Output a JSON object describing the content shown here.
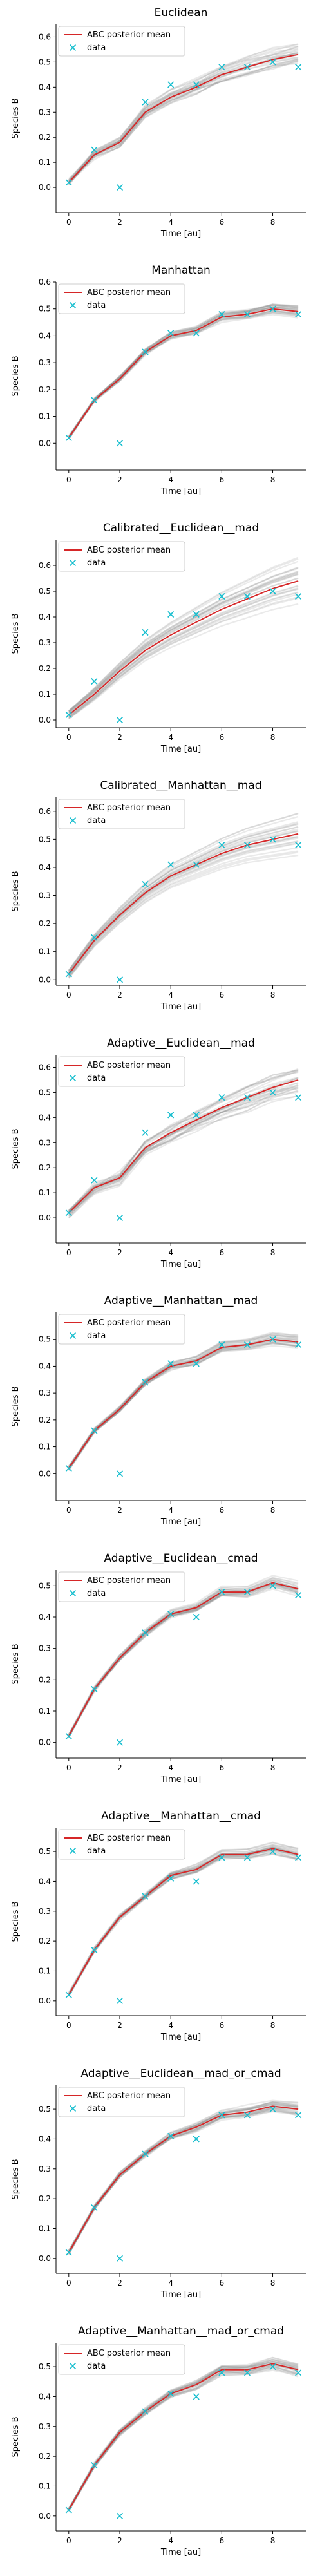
{
  "chart_data": [
    {
      "type": "line",
      "title": "Euclidean",
      "xlabel": "Time [au]",
      "ylabel": "Species B",
      "xlim": [
        -0.5,
        9.3
      ],
      "ylim": [
        -0.1,
        0.65
      ],
      "xticks": [
        "0",
        "2",
        "4",
        "6",
        "8"
      ],
      "yticks": [
        "0.0",
        "0.1",
        "0.2",
        "0.3",
        "0.4",
        "0.5",
        "0.6"
      ],
      "legend": {
        "placement": "top-left",
        "entries": [
          "ABC posterior mean",
          "data"
        ]
      },
      "series": [
        {
          "name": "ABC posterior mean",
          "x": [
            0,
            1,
            2,
            3,
            4,
            5,
            6,
            7,
            8,
            9
          ],
          "y": [
            0.02,
            0.13,
            0.18,
            0.3,
            0.36,
            0.4,
            0.45,
            0.48,
            0.51,
            0.53
          ]
        },
        {
          "name": "data",
          "x": [
            0,
            1,
            2,
            3,
            4,
            5,
            6,
            7,
            8,
            9
          ],
          "y": [
            0.02,
            0.15,
            0.0,
            0.34,
            0.41,
            0.41,
            0.48,
            0.48,
            0.5,
            0.48
          ]
        }
      ],
      "band": {
        "spread": 0.035,
        "trend": "wiggly"
      }
    },
    {
      "type": "line",
      "title": "Manhattan",
      "xlabel": "Time [au]",
      "ylabel": "Species B",
      "xlim": [
        -0.5,
        9.3
      ],
      "ylim": [
        -0.1,
        0.6
      ],
      "xticks": [
        "0",
        "2",
        "4",
        "6",
        "8"
      ],
      "yticks": [
        "0.0",
        "0.1",
        "0.2",
        "0.3",
        "0.4",
        "0.5",
        "0.6"
      ],
      "legend": {
        "placement": "top-left",
        "entries": [
          "ABC posterior mean",
          "data"
        ]
      },
      "series": [
        {
          "name": "ABC posterior mean",
          "x": [
            0,
            1,
            2,
            3,
            4,
            5,
            6,
            7,
            8,
            9
          ],
          "y": [
            0.02,
            0.16,
            0.24,
            0.34,
            0.4,
            0.42,
            0.47,
            0.48,
            0.5,
            0.49
          ]
        },
        {
          "name": "data",
          "x": [
            0,
            1,
            2,
            3,
            4,
            5,
            6,
            7,
            8,
            9
          ],
          "y": [
            0.02,
            0.16,
            0.0,
            0.34,
            0.41,
            0.41,
            0.48,
            0.48,
            0.5,
            0.48
          ]
        }
      ],
      "band": {
        "spread": 0.015,
        "trend": "wiggly"
      }
    },
    {
      "type": "line",
      "title": "Calibrated__Euclidean__mad",
      "xlabel": "Time [au]",
      "ylabel": "Species B",
      "xlim": [
        -0.5,
        9.3
      ],
      "ylim": [
        -0.03,
        0.7
      ],
      "xticks": [
        "0",
        "2",
        "4",
        "6",
        "8"
      ],
      "yticks": [
        "0.0",
        "0.1",
        "0.2",
        "0.3",
        "0.4",
        "0.5",
        "0.6"
      ],
      "legend": {
        "placement": "top-left",
        "entries": [
          "ABC posterior mean",
          "data"
        ]
      },
      "series": [
        {
          "name": "ABC posterior mean",
          "x": [
            0,
            1,
            2,
            3,
            4,
            5,
            6,
            7,
            8,
            9
          ],
          "y": [
            0.02,
            0.1,
            0.19,
            0.27,
            0.33,
            0.38,
            0.43,
            0.47,
            0.51,
            0.54
          ]
        },
        {
          "name": "data",
          "x": [
            0,
            1,
            2,
            3,
            4,
            5,
            6,
            7,
            8,
            9
          ],
          "y": [
            0.02,
            0.15,
            0.0,
            0.34,
            0.41,
            0.41,
            0.48,
            0.48,
            0.5,
            0.48
          ]
        }
      ],
      "band": {
        "spread": 0.06,
        "trend": "smooth"
      }
    },
    {
      "type": "line",
      "title": "Calibrated__Manhattan__mad",
      "xlabel": "Time [au]",
      "ylabel": "Species B",
      "xlim": [
        -0.5,
        9.3
      ],
      "ylim": [
        -0.02,
        0.65
      ],
      "xticks": [
        "0",
        "2",
        "4",
        "6",
        "8"
      ],
      "yticks": [
        "0.0",
        "0.1",
        "0.2",
        "0.3",
        "0.4",
        "0.5",
        "0.6"
      ],
      "legend": {
        "placement": "top-left",
        "entries": [
          "ABC posterior mean",
          "data"
        ]
      },
      "series": [
        {
          "name": "ABC posterior mean",
          "x": [
            0,
            1,
            2,
            3,
            4,
            5,
            6,
            7,
            8,
            9
          ],
          "y": [
            0.02,
            0.14,
            0.23,
            0.31,
            0.37,
            0.41,
            0.45,
            0.48,
            0.5,
            0.52
          ]
        },
        {
          "name": "data",
          "x": [
            0,
            1,
            2,
            3,
            4,
            5,
            6,
            7,
            8,
            9
          ],
          "y": [
            0.02,
            0.15,
            0.0,
            0.34,
            0.41,
            0.41,
            0.48,
            0.48,
            0.5,
            0.48
          ]
        }
      ],
      "band": {
        "spread": 0.05,
        "trend": "smooth"
      }
    },
    {
      "type": "line",
      "title": "Adaptive__Euclidean__mad",
      "xlabel": "Time [au]",
      "ylabel": "Species B",
      "xlim": [
        -0.5,
        9.3
      ],
      "ylim": [
        -0.1,
        0.65
      ],
      "xticks": [
        "0",
        "2",
        "4",
        "6",
        "8"
      ],
      "yticks": [
        "0.0",
        "0.1",
        "0.2",
        "0.3",
        "0.4",
        "0.5",
        "0.6"
      ],
      "legend": {
        "placement": "top-left",
        "entries": [
          "ABC posterior mean",
          "data"
        ]
      },
      "series": [
        {
          "name": "ABC posterior mean",
          "x": [
            0,
            1,
            2,
            3,
            4,
            5,
            6,
            7,
            8,
            9
          ],
          "y": [
            0.02,
            0.12,
            0.16,
            0.28,
            0.34,
            0.39,
            0.44,
            0.48,
            0.52,
            0.55
          ]
        },
        {
          "name": "data",
          "x": [
            0,
            1,
            2,
            3,
            4,
            5,
            6,
            7,
            8,
            9
          ],
          "y": [
            0.02,
            0.15,
            0.0,
            0.34,
            0.41,
            0.41,
            0.48,
            0.48,
            0.5,
            0.48
          ]
        }
      ],
      "band": {
        "spread": 0.04,
        "trend": "wiggly"
      }
    },
    {
      "type": "line",
      "title": "Adaptive__Manhattan__mad",
      "xlabel": "Time [au]",
      "ylabel": "Species B",
      "xlim": [
        -0.5,
        9.3
      ],
      "ylim": [
        -0.1,
        0.6
      ],
      "xticks": [
        "0",
        "2",
        "4",
        "6",
        "8"
      ],
      "yticks": [
        "0.0",
        "0.1",
        "0.2",
        "0.3",
        "0.4",
        "0.5"
      ],
      "legend": {
        "placement": "top-left",
        "entries": [
          "ABC posterior mean",
          "data"
        ]
      },
      "series": [
        {
          "name": "ABC posterior mean",
          "x": [
            0,
            1,
            2,
            3,
            4,
            5,
            6,
            7,
            8,
            9
          ],
          "y": [
            0.02,
            0.16,
            0.24,
            0.34,
            0.4,
            0.42,
            0.47,
            0.48,
            0.5,
            0.49
          ]
        },
        {
          "name": "data",
          "x": [
            0,
            1,
            2,
            3,
            4,
            5,
            6,
            7,
            8,
            9
          ],
          "y": [
            0.02,
            0.16,
            0.0,
            0.34,
            0.41,
            0.41,
            0.48,
            0.48,
            0.5,
            0.48
          ]
        }
      ],
      "band": {
        "spread": 0.015,
        "trend": "wiggly"
      }
    },
    {
      "type": "line",
      "title": "Adaptive__Euclidean__cmad",
      "xlabel": "Time [au]",
      "ylabel": "Species B",
      "xlim": [
        -0.5,
        9.3
      ],
      "ylim": [
        -0.05,
        0.55
      ],
      "xticks": [
        "0",
        "2",
        "4",
        "6",
        "8"
      ],
      "yticks": [
        "0.0",
        "0.1",
        "0.2",
        "0.3",
        "0.4",
        "0.5"
      ],
      "legend": {
        "placement": "top-left",
        "entries": [
          "ABC posterior mean",
          "data"
        ]
      },
      "series": [
        {
          "name": "ABC posterior mean",
          "x": [
            0,
            1,
            2,
            3,
            4,
            5,
            6,
            7,
            8,
            9
          ],
          "y": [
            0.02,
            0.17,
            0.27,
            0.35,
            0.41,
            0.43,
            0.48,
            0.48,
            0.51,
            0.49
          ]
        },
        {
          "name": "data",
          "x": [
            0,
            1,
            2,
            3,
            4,
            5,
            6,
            7,
            8,
            9
          ],
          "y": [
            0.02,
            0.17,
            0.0,
            0.35,
            0.41,
            0.4,
            0.48,
            0.48,
            0.5,
            0.47
          ]
        }
      ],
      "band": {
        "spread": 0.015,
        "trend": "wiggly"
      }
    },
    {
      "type": "line",
      "title": "Adaptive__Manhattan__cmad",
      "xlabel": "Time [au]",
      "ylabel": "Species B",
      "xlim": [
        -0.5,
        9.3
      ],
      "ylim": [
        -0.05,
        0.58
      ],
      "xticks": [
        "0",
        "2",
        "4",
        "6",
        "8"
      ],
      "yticks": [
        "0.0",
        "0.1",
        "0.2",
        "0.3",
        "0.4",
        "0.5"
      ],
      "legend": {
        "placement": "top-left",
        "entries": [
          "ABC posterior mean",
          "data"
        ]
      },
      "series": [
        {
          "name": "ABC posterior mean",
          "x": [
            0,
            1,
            2,
            3,
            4,
            5,
            6,
            7,
            8,
            9
          ],
          "y": [
            0.02,
            0.17,
            0.28,
            0.35,
            0.42,
            0.44,
            0.49,
            0.49,
            0.51,
            0.49
          ]
        },
        {
          "name": "data",
          "x": [
            0,
            1,
            2,
            3,
            4,
            5,
            6,
            7,
            8,
            9
          ],
          "y": [
            0.02,
            0.17,
            0.0,
            0.35,
            0.41,
            0.4,
            0.48,
            0.48,
            0.5,
            0.48
          ]
        }
      ],
      "band": {
        "spread": 0.015,
        "trend": "wiggly"
      }
    },
    {
      "type": "line",
      "title": "Adaptive__Euclidean__mad_or_cmad",
      "xlabel": "Time [au]",
      "ylabel": "Species B",
      "xlim": [
        -0.5,
        9.3
      ],
      "ylim": [
        -0.05,
        0.58
      ],
      "xticks": [
        "0",
        "2",
        "4",
        "6",
        "8"
      ],
      "yticks": [
        "0.0",
        "0.1",
        "0.2",
        "0.3",
        "0.4",
        "0.5"
      ],
      "legend": {
        "placement": "top-left",
        "entries": [
          "ABC posterior mean",
          "data"
        ]
      },
      "series": [
        {
          "name": "ABC posterior mean",
          "x": [
            0,
            1,
            2,
            3,
            4,
            5,
            6,
            7,
            8,
            9
          ],
          "y": [
            0.02,
            0.17,
            0.28,
            0.35,
            0.41,
            0.44,
            0.48,
            0.49,
            0.51,
            0.5
          ]
        },
        {
          "name": "data",
          "x": [
            0,
            1,
            2,
            3,
            4,
            5,
            6,
            7,
            8,
            9
          ],
          "y": [
            0.02,
            0.17,
            0.0,
            0.35,
            0.41,
            0.4,
            0.48,
            0.48,
            0.5,
            0.48
          ]
        }
      ],
      "band": {
        "spread": 0.015,
        "trend": "wiggly"
      }
    },
    {
      "type": "line",
      "title": "Adaptive__Manhattan__mad_or_cmad",
      "xlabel": "Time [au]",
      "ylabel": "Species B",
      "xlim": [
        -0.5,
        9.3
      ],
      "ylim": [
        -0.05,
        0.58
      ],
      "xticks": [
        "0",
        "2",
        "4",
        "6",
        "8"
      ],
      "yticks": [
        "0.0",
        "0.1",
        "0.2",
        "0.3",
        "0.4",
        "0.5"
      ],
      "legend": {
        "placement": "top-left",
        "entries": [
          "ABC posterior mean",
          "data"
        ]
      },
      "series": [
        {
          "name": "ABC posterior mean",
          "x": [
            0,
            1,
            2,
            3,
            4,
            5,
            6,
            7,
            8,
            9
          ],
          "y": [
            0.02,
            0.17,
            0.28,
            0.35,
            0.41,
            0.44,
            0.49,
            0.49,
            0.51,
            0.49
          ]
        },
        {
          "name": "data",
          "x": [
            0,
            1,
            2,
            3,
            4,
            5,
            6,
            7,
            8,
            9
          ],
          "y": [
            0.02,
            0.17,
            0.0,
            0.35,
            0.41,
            0.4,
            0.48,
            0.48,
            0.5,
            0.48
          ]
        }
      ],
      "band": {
        "spread": 0.015,
        "trend": "wiggly"
      }
    }
  ],
  "colors": {
    "mean_line": "#d62728",
    "data_marker": "#17becf",
    "samples": "#888888",
    "axes": "#000000"
  }
}
